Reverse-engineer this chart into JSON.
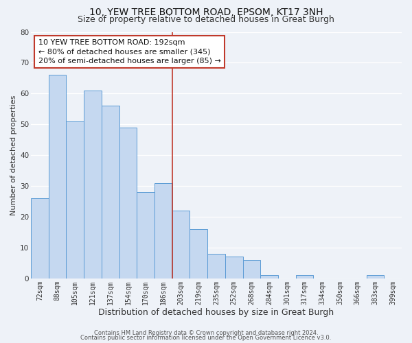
{
  "title": "10, YEW TREE BOTTOM ROAD, EPSOM, KT17 3NH",
  "subtitle": "Size of property relative to detached houses in Great Burgh",
  "xlabel": "Distribution of detached houses by size in Great Burgh",
  "ylabel": "Number of detached properties",
  "bin_labels": [
    "72sqm",
    "88sqm",
    "105sqm",
    "121sqm",
    "137sqm",
    "154sqm",
    "170sqm",
    "186sqm",
    "203sqm",
    "219sqm",
    "235sqm",
    "252sqm",
    "268sqm",
    "284sqm",
    "301sqm",
    "317sqm",
    "334sqm",
    "350sqm",
    "366sqm",
    "383sqm",
    "399sqm"
  ],
  "bin_counts": [
    26,
    66,
    51,
    61,
    56,
    49,
    28,
    31,
    22,
    16,
    8,
    7,
    6,
    1,
    0,
    1,
    0,
    0,
    0,
    1,
    0
  ],
  "bar_color": "#c5d8f0",
  "bar_edge_color": "#5b9bd5",
  "vline_x": 7.5,
  "vline_color": "#c0392b",
  "annotation_line1": "10 YEW TREE BOTTOM ROAD: 192sqm",
  "annotation_line2": "← 80% of detached houses are smaller (345)",
  "annotation_line3": "20% of semi-detached houses are larger (85) →",
  "annotation_box_color": "#ffffff",
  "annotation_box_edge": "#c0392b",
  "ylim": [
    0,
    80
  ],
  "yticks": [
    0,
    10,
    20,
    30,
    40,
    50,
    60,
    70,
    80
  ],
  "footer1": "Contains HM Land Registry data © Crown copyright and database right 2024.",
  "footer2": "Contains public sector information licensed under the Open Government Licence v3.0.",
  "bg_color": "#eef2f8",
  "grid_color": "#ffffff",
  "title_fontsize": 10,
  "subtitle_fontsize": 9,
  "xlabel_fontsize": 9,
  "ylabel_fontsize": 8,
  "tick_fontsize": 7,
  "annotation_fontsize": 8,
  "footer_fontsize": 6
}
